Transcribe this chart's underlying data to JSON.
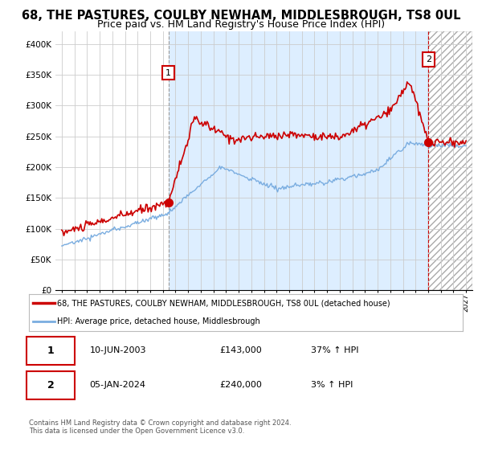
{
  "title": "68, THE PASTURES, COULBY NEWHAM, MIDDLESBROUGH, TS8 0UL",
  "subtitle": "Price paid vs. HM Land Registry's House Price Index (HPI)",
  "ylabel_ticks": [
    "£0",
    "£50K",
    "£100K",
    "£150K",
    "£200K",
    "£250K",
    "£300K",
    "£350K",
    "£400K"
  ],
  "ytick_values": [
    0,
    50000,
    100000,
    150000,
    200000,
    250000,
    300000,
    350000,
    400000
  ],
  "ylim": [
    0,
    420000
  ],
  "xlim": [
    1994.5,
    2027.5
  ],
  "red_line_color": "#cc0000",
  "blue_line_color": "#7aade0",
  "shade_color": "#ddeeff",
  "background_color": "#ffffff",
  "grid_color": "#cccccc",
  "title_fontsize": 10.5,
  "subtitle_fontsize": 9,
  "sale1_x": 2003.44,
  "sale1_y": 143000,
  "sale2_x": 2024.02,
  "sale2_y": 240000,
  "sale1_date": "10-JUN-2003",
  "sale1_price": "£143,000",
  "sale1_hpi": "37% ↑ HPI",
  "sale2_date": "05-JAN-2024",
  "sale2_price": "£240,000",
  "sale2_hpi": "3% ↑ HPI",
  "legend_line1": "68, THE PASTURES, COULBY NEWHAM, MIDDLESBROUGH, TS8 0UL (detached house)",
  "legend_line2": "HPI: Average price, detached house, Middlesbrough",
  "footer1": "Contains HM Land Registry data © Crown copyright and database right 2024.",
  "footer2": "This data is licensed under the Open Government Licence v3.0."
}
